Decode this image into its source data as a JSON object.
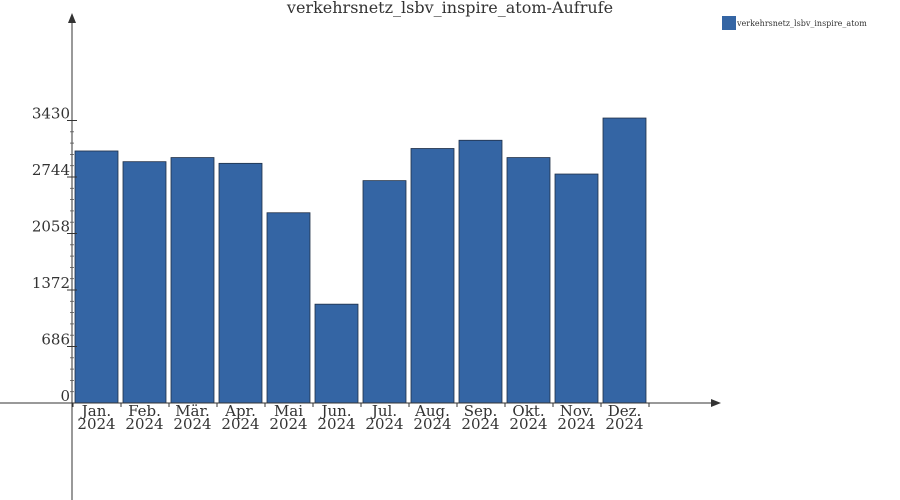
{
  "chart_data": {
    "type": "bar",
    "title": "verkehrsnetz_lsbv_inspire_atom-Aufrufe",
    "xlabel": "",
    "ylabel": "",
    "categories": [
      [
        "Jan.",
        "2024"
      ],
      [
        "Feb.",
        "2024"
      ],
      [
        "Mär.",
        "2024"
      ],
      [
        "Apr.",
        "2024"
      ],
      [
        "Mai",
        "2024"
      ],
      [
        "Jun.",
        "2024"
      ],
      [
        "Jul.",
        "2024"
      ],
      [
        "Aug.",
        "2024"
      ],
      [
        "Sep.",
        "2024"
      ],
      [
        "Okt.",
        "2024"
      ],
      [
        "Nov.",
        "2024"
      ],
      [
        "Dez.",
        "2024"
      ]
    ],
    "series": [
      {
        "name": "verkehrsnetz_lsbv_inspire_atom",
        "color": "#3465a4",
        "values": [
          3060,
          2930,
          2980,
          2910,
          2310,
          1200,
          2700,
          3090,
          3190,
          2980,
          2780,
          3460
        ]
      }
    ],
    "yticks": [
      0,
      686,
      1372,
      2058,
      2744,
      3430
    ],
    "ylim": [
      0,
      4600
    ],
    "grid": false,
    "legend_position": "top-right"
  }
}
